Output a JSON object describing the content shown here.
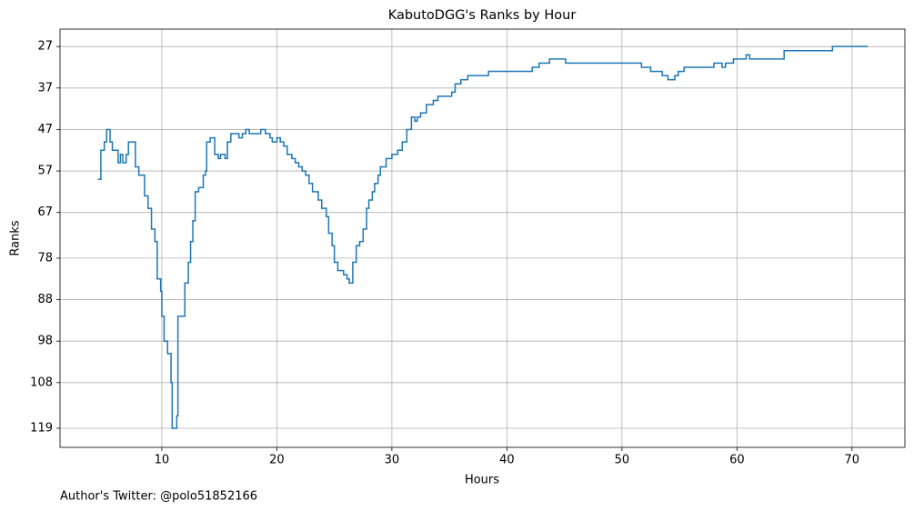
{
  "chart_data": {
    "type": "line",
    "drawstyle": "steps-post",
    "title": "KabutoDGG's Ranks by Hour",
    "x_label": "Hours",
    "y_label": "Ranks",
    "footnote": "Author's Twitter: @polo51852166",
    "color": "#1f77b4",
    "grid": true,
    "xlim": [
      1.15,
      74.6
    ],
    "xticks": [
      10,
      20,
      30,
      40,
      50,
      60,
      70
    ],
    "ylim": [
      123.6,
      22.8
    ],
    "yticks": [
      27,
      37,
      47,
      57,
      67,
      78,
      88,
      98,
      108,
      119
    ],
    "x": [
      4.5,
      4.7,
      5.0,
      5.2,
      5.5,
      5.7,
      6.2,
      6.4,
      6.6,
      6.9,
      7.1,
      7.7,
      8.0,
      8.5,
      8.8,
      9.1,
      9.4,
      9.6,
      9.9,
      10.0,
      10.2,
      10.5,
      10.8,
      10.9,
      11.3,
      11.4,
      12.0,
      12.3,
      12.5,
      12.7,
      12.9,
      13.2,
      13.6,
      13.8,
      13.9,
      14.2,
      14.6,
      14.9,
      15.1,
      15.5,
      15.7,
      16.0,
      16.7,
      17.0,
      17.3,
      17.6,
      18.6,
      19.0,
      19.4,
      19.6,
      20.0,
      20.3,
      20.6,
      20.9,
      21.3,
      21.6,
      21.9,
      22.2,
      22.5,
      22.8,
      23.1,
      23.6,
      23.9,
      24.3,
      24.5,
      24.8,
      25.0,
      25.3,
      25.8,
      26.1,
      26.3,
      26.6,
      26.9,
      27.2,
      27.5,
      27.8,
      28.0,
      28.3,
      28.5,
      28.8,
      29.0,
      29.5,
      30.0,
      30.5,
      30.9,
      31.3,
      31.7,
      32.0,
      32.2,
      32.5,
      33.0,
      33.6,
      34.0,
      35.2,
      35.5,
      36.0,
      36.6,
      38.4,
      42.2,
      42.8,
      43.7,
      45.1,
      51.7,
      52.5,
      53.5,
      54.0,
      54.6,
      54.9,
      55.4,
      58.0,
      58.7,
      59.0,
      59.7,
      60.8,
      61.1,
      64.1,
      68.3,
      71.3
    ],
    "values": [
      59,
      52,
      50,
      47,
      50,
      52,
      55,
      53,
      55,
      53,
      50,
      56,
      58,
      63,
      66,
      71,
      74,
      83,
      86,
      92,
      98,
      101,
      108,
      119,
      116,
      92,
      84,
      79,
      74,
      69,
      62,
      61,
      58,
      57,
      50,
      49,
      53,
      54,
      53,
      54,
      50,
      48,
      49,
      48,
      47,
      48,
      47,
      48,
      49,
      50,
      49,
      50,
      51,
      53,
      54,
      55,
      56,
      57,
      58,
      60,
      62,
      64,
      66,
      68,
      72,
      75,
      79,
      81,
      82,
      83,
      84,
      79,
      75,
      74,
      71,
      66,
      64,
      62,
      60,
      58,
      56,
      54,
      53,
      52,
      50,
      47,
      44,
      45,
      44,
      43,
      41,
      40,
      39,
      38,
      36,
      35,
      34,
      33,
      32,
      31,
      30,
      31,
      32,
      33,
      34,
      35,
      34,
      33,
      32,
      31,
      32,
      31,
      30,
      29,
      30,
      28,
      27,
      27
    ]
  }
}
